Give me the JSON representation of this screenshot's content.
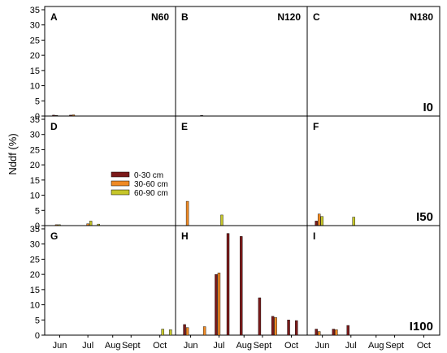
{
  "chart_data": {
    "type": "bar",
    "ylabel": "Nddf (%)",
    "ylim": [
      0,
      35
    ],
    "yticks": [
      0,
      5,
      10,
      15,
      20,
      25,
      30,
      35
    ],
    "xticks": [
      "Jun",
      "Jul",
      "Aug",
      "Sept",
      "Oct"
    ],
    "legend": {
      "placement": "inside panel D, center-right",
      "entries": [
        {
          "label": "0-30 cm",
          "color": "#7b1a1a"
        },
        {
          "label": "30-60 cm",
          "color": "#f08a24"
        },
        {
          "label": "60-90 cm",
          "color": "#c6c62a"
        }
      ]
    },
    "series_names": [
      "0-30 cm",
      "30-60 cm",
      "60-90 cm"
    ],
    "panels": [
      {
        "letter": "A",
        "n_label": "N60",
        "i_label": "",
        "bars": [
          {
            "date": "Jun",
            "values": [
              0.3,
              0.2,
              0
            ]
          },
          {
            "date": "Jun/Jul",
            "values": [
              0.3,
              0.4,
              0
            ]
          }
        ]
      },
      {
        "letter": "B",
        "n_label": "N120",
        "i_label": "",
        "bars": [
          {
            "date": "Jun/Jul",
            "values": [
              0.2,
              0,
              0
            ]
          }
        ]
      },
      {
        "letter": "C",
        "n_label": "N180",
        "i_label": "I0",
        "bars": []
      },
      {
        "letter": "D",
        "n_label": "",
        "i_label": "",
        "bars": [
          {
            "date": "Jun",
            "values": [
              0,
              0.3,
              0.3
            ]
          },
          {
            "date": "Jul",
            "values": [
              0,
              0.6,
              1.5
            ]
          },
          {
            "date": "Jul",
            "values": [
              0,
              0,
              0.5
            ]
          }
        ]
      },
      {
        "letter": "E",
        "n_label": "",
        "i_label": "",
        "bars": [
          {
            "date": "Jun",
            "values": [
              0,
              8,
              0
            ]
          },
          {
            "date": "Jul",
            "values": [
              0,
              0,
              3.5
            ]
          }
        ]
      },
      {
        "letter": "F",
        "n_label": "",
        "i_label": "I50",
        "bars": [
          {
            "date": "Jun",
            "values": [
              1.5,
              3.8,
              3
            ]
          },
          {
            "date": "Jul",
            "values": [
              0,
              0,
              2.8
            ]
          }
        ]
      },
      {
        "letter": "G",
        "n_label": "",
        "i_label": "",
        "bars": [
          {
            "date": "Oct",
            "values": [
              0,
              0,
              2
            ]
          },
          {
            "date": "Oct",
            "values": [
              0,
              0,
              1.8
            ]
          }
        ]
      },
      {
        "letter": "H",
        "n_label": "",
        "i_label": "",
        "bars": [
          {
            "date": "Jun",
            "values": [
              3.5,
              2.5,
              0
            ]
          },
          {
            "date": "Jun/Jul",
            "values": [
              0,
              2.8,
              0
            ]
          },
          {
            "date": "Jul",
            "values": [
              20,
              20.5,
              0
            ]
          },
          {
            "date": "Jul/Aug",
            "values": [
              33.5,
              0,
              0
            ]
          },
          {
            "date": "Aug",
            "values": [
              32.5,
              0,
              0
            ]
          },
          {
            "date": "Sept",
            "values": [
              12.3,
              0,
              0
            ]
          },
          {
            "date": "Sept/Oct",
            "values": [
              6.2,
              5.8,
              0
            ]
          },
          {
            "date": "Oct",
            "values": [
              5,
              0,
              0
            ]
          },
          {
            "date": "Oct",
            "values": [
              4.8,
              0,
              0
            ]
          }
        ]
      },
      {
        "letter": "I",
        "n_label": "",
        "i_label": "I100",
        "bars": [
          {
            "date": "Jun",
            "values": [
              2,
              1.2,
              0
            ]
          },
          {
            "date": "Jun/Jul",
            "values": [
              2,
              1.8,
              0
            ]
          },
          {
            "date": "Jul",
            "values": [
              3.2,
              0,
              0
            ]
          }
        ]
      }
    ]
  }
}
